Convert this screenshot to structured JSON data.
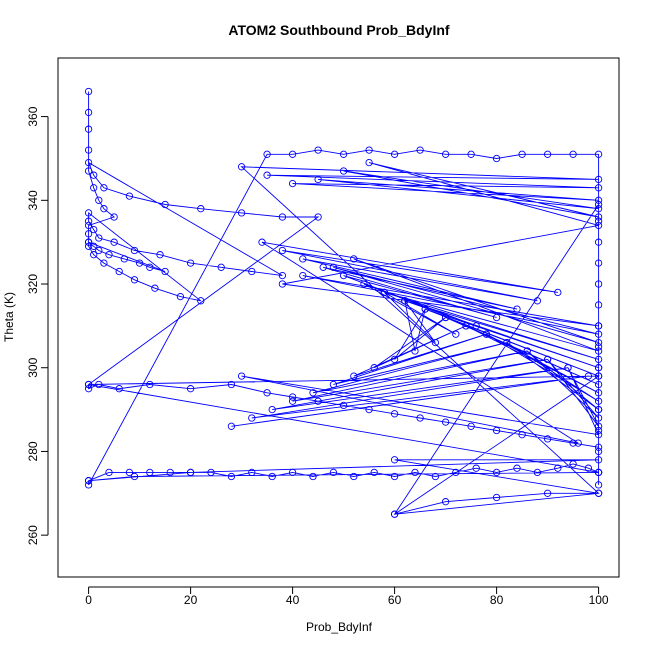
{
  "chart_data": {
    "type": "line",
    "title": "ATOM2 Southbound Prob_BdyInf",
    "xlabel": "Prob_BdyInf",
    "ylabel": "Theta (K)",
    "xlim": [
      -6,
      104
    ],
    "ylim": [
      250,
      374
    ],
    "x_ticks": [
      "0",
      "20",
      "40",
      "60",
      "80",
      "100"
    ],
    "y_ticks": [
      "260",
      "280",
      "300",
      "320",
      "340",
      "360"
    ],
    "grid": false,
    "legend": "none",
    "series_color": "#0000ff",
    "series": [
      {
        "markers": "open-circle",
        "x": [
          0,
          0,
          0,
          0,
          0,
          1,
          2,
          3,
          5,
          0,
          0,
          0,
          1,
          2,
          4,
          7,
          10,
          12,
          15,
          0,
          0,
          1,
          3,
          6,
          9,
          13,
          18,
          22,
          0,
          0,
          1,
          2,
          5,
          9,
          14,
          20,
          26,
          32,
          38,
          0,
          1,
          3,
          8,
          15,
          22,
          30,
          38,
          45,
          0,
          0,
          2,
          6,
          12,
          20,
          28,
          35,
          40,
          45,
          50,
          55,
          60,
          65,
          70,
          75,
          80,
          85,
          90,
          95,
          100,
          100,
          98,
          95,
          92,
          88,
          84,
          80,
          76,
          72,
          68,
          64,
          60,
          56,
          52,
          48,
          44,
          40,
          36,
          32,
          28,
          24,
          20,
          16,
          12,
          8,
          4,
          0,
          0,
          35,
          40,
          45,
          50,
          55,
          60,
          65,
          70,
          75,
          80,
          85,
          90,
          95,
          100,
          100,
          100,
          100,
          100,
          100,
          100,
          100,
          100,
          100,
          100,
          100,
          100,
          100,
          100,
          60,
          70,
          80,
          90,
          100,
          60,
          100,
          20,
          0,
          9,
          100,
          0,
          100,
          60,
          100,
          30,
          100,
          35,
          100,
          40,
          100,
          45,
          100,
          50,
          100,
          55,
          100,
          38,
          100,
          42,
          100,
          48,
          100,
          52,
          100,
          58,
          100,
          62,
          100,
          66,
          100,
          70,
          100,
          74,
          100,
          78,
          100,
          82,
          100,
          86,
          100,
          90,
          100,
          94,
          100,
          30,
          96,
          34,
          92,
          38,
          88,
          42,
          84,
          46,
          80,
          50,
          76,
          54,
          72,
          58,
          68,
          62,
          64,
          66,
          60,
          70,
          56,
          74,
          52,
          78,
          48,
          82,
          44,
          86,
          40,
          90,
          36,
          94,
          32,
          98,
          28
        ],
        "y": [
          366,
          361,
          357,
          352,
          347,
          343,
          340,
          338,
          336,
          334,
          332,
          330,
          329,
          328,
          327,
          326,
          325,
          324,
          323,
          330,
          329,
          327,
          325,
          323,
          321,
          319,
          317,
          316,
          337,
          335,
          333,
          331,
          330,
          328,
          327,
          325,
          324,
          323,
          322,
          349,
          346,
          343,
          341,
          339,
          338,
          337,
          336,
          336,
          296,
          295,
          296,
          295,
          296,
          295,
          296,
          294,
          293,
          292,
          291,
          290,
          289,
          288,
          287,
          286,
          285,
          284,
          283,
          282,
          281,
          275,
          276,
          277,
          276,
          275,
          276,
          275,
          276,
          275,
          274,
          275,
          274,
          275,
          274,
          275,
          274,
          275,
          274,
          275,
          274,
          275,
          275,
          275,
          275,
          275,
          275,
          273,
          272,
          351,
          351,
          352,
          351,
          352,
          351,
          352,
          351,
          351,
          350,
          351,
          351,
          351,
          351,
          300,
          290,
          285,
          280,
          275,
          272,
          305,
          310,
          315,
          320,
          325,
          330,
          335,
          339,
          265,
          268,
          269,
          270,
          270,
          278,
          278,
          275,
          273,
          274,
          275,
          296,
          298,
          265,
          270,
          348,
          345,
          346,
          343,
          344,
          340,
          345,
          338,
          347,
          336,
          349,
          334,
          320,
          310,
          322,
          308,
          324,
          306,
          326,
          304,
          318,
          302,
          316,
          300,
          314,
          298,
          312,
          296,
          310,
          294,
          308,
          292,
          306,
          290,
          304,
          288,
          302,
          286,
          300,
          284,
          298,
          282,
          330,
          318,
          328,
          316,
          326,
          314,
          324,
          312,
          322,
          310,
          320,
          308,
          318,
          306,
          316,
          304,
          314,
          302,
          312,
          300,
          310,
          298,
          308,
          296,
          306,
          294,
          304,
          292,
          302,
          290,
          300,
          288,
          298,
          286
        ]
      }
    ]
  }
}
